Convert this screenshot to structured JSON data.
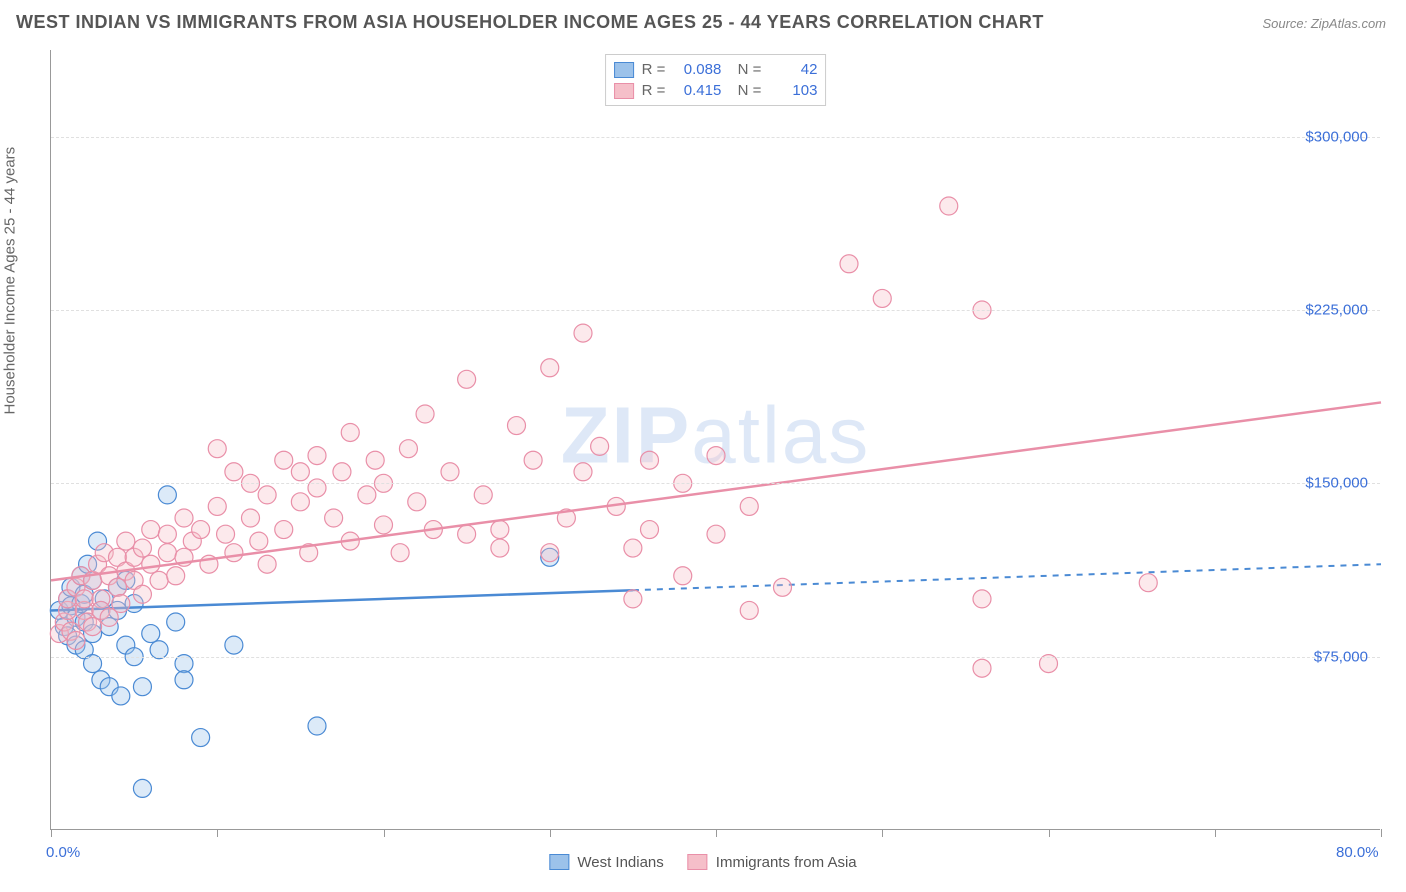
{
  "title": "WEST INDIAN VS IMMIGRANTS FROM ASIA HOUSEHOLDER INCOME AGES 25 - 44 YEARS CORRELATION CHART",
  "source": "Source: ZipAtlas.com",
  "y_axis_label": "Householder Income Ages 25 - 44 years",
  "watermark": "ZIPatlas",
  "chart": {
    "type": "scatter",
    "xlim": [
      0,
      80
    ],
    "ylim": [
      0,
      337500
    ],
    "x_tick_positions": [
      0,
      10,
      20,
      30,
      40,
      50,
      60,
      70,
      80
    ],
    "x_tick_labels": {
      "0": "0.0%",
      "80": "80.0%"
    },
    "y_ticks": [
      75000,
      150000,
      225000,
      300000
    ],
    "y_tick_labels": [
      "$75,000",
      "$150,000",
      "$225,000",
      "$300,000"
    ],
    "background_color": "#ffffff",
    "grid_color": "#e0e0e0",
    "marker_radius": 9,
    "marker_stroke_width": 1.2,
    "marker_fill_opacity": 0.35,
    "series": [
      {
        "name": "West Indians",
        "color_stroke": "#4a8ad4",
        "color_fill": "#9cc2ea",
        "R": "0.088",
        "N": "42",
        "regression": {
          "x1": 0,
          "y1": 95000,
          "x2": 80,
          "y2": 115000,
          "solid_until_x": 35
        },
        "points": [
          [
            0.5,
            95000
          ],
          [
            0.8,
            88000
          ],
          [
            1,
            100000
          ],
          [
            1,
            84000
          ],
          [
            1.2,
            97000
          ],
          [
            1.2,
            105000
          ],
          [
            1.5,
            92000
          ],
          [
            1.5,
            80000
          ],
          [
            1.8,
            110000
          ],
          [
            1.8,
            98000
          ],
          [
            2,
            102000
          ],
          [
            2,
            90000
          ],
          [
            2,
            78000
          ],
          [
            2.2,
            115000
          ],
          [
            2.5,
            108000
          ],
          [
            2.5,
            85000
          ],
          [
            2.5,
            72000
          ],
          [
            2.8,
            125000
          ],
          [
            3,
            95000
          ],
          [
            3,
            65000
          ],
          [
            3.2,
            100000
          ],
          [
            3.5,
            88000
          ],
          [
            3.5,
            62000
          ],
          [
            4,
            105000
          ],
          [
            4,
            95000
          ],
          [
            4.2,
            58000
          ],
          [
            4.5,
            108000
          ],
          [
            4.5,
            80000
          ],
          [
            5,
            98000
          ],
          [
            5,
            75000
          ],
          [
            5.5,
            62000
          ],
          [
            5.5,
            18000
          ],
          [
            6,
            85000
          ],
          [
            6.5,
            78000
          ],
          [
            7,
            145000
          ],
          [
            7.5,
            90000
          ],
          [
            8,
            72000
          ],
          [
            8,
            65000
          ],
          [
            9,
            40000
          ],
          [
            11,
            80000
          ],
          [
            16,
            45000
          ],
          [
            30,
            118000
          ]
        ]
      },
      {
        "name": "Immigrants from Asia",
        "color_stroke": "#e98fa8",
        "color_fill": "#f5bfc9",
        "R": "0.415",
        "N": "103",
        "regression": {
          "x1": 0,
          "y1": 108000,
          "x2": 80,
          "y2": 185000,
          "solid_until_x": 80
        },
        "points": [
          [
            0.5,
            85000
          ],
          [
            0.8,
            90000
          ],
          [
            1,
            95000
          ],
          [
            1,
            100000
          ],
          [
            1.2,
            86000
          ],
          [
            1.5,
            105000
          ],
          [
            1.5,
            82000
          ],
          [
            1.8,
            110000
          ],
          [
            2,
            95000
          ],
          [
            2,
            100000
          ],
          [
            2.2,
            90000
          ],
          [
            2.5,
            108000
          ],
          [
            2.5,
            88000
          ],
          [
            2.8,
            115000
          ],
          [
            3,
            100000
          ],
          [
            3,
            95000
          ],
          [
            3.2,
            120000
          ],
          [
            3.5,
            110000
          ],
          [
            3.5,
            92000
          ],
          [
            4,
            118000
          ],
          [
            4,
            105000
          ],
          [
            4.2,
            98000
          ],
          [
            4.5,
            125000
          ],
          [
            4.5,
            112000
          ],
          [
            5,
            108000
          ],
          [
            5,
            118000
          ],
          [
            5.5,
            122000
          ],
          [
            5.5,
            102000
          ],
          [
            6,
            130000
          ],
          [
            6,
            115000
          ],
          [
            6.5,
            108000
          ],
          [
            7,
            128000
          ],
          [
            7,
            120000
          ],
          [
            7.5,
            110000
          ],
          [
            8,
            135000
          ],
          [
            8,
            118000
          ],
          [
            8.5,
            125000
          ],
          [
            9,
            130000
          ],
          [
            9.5,
            115000
          ],
          [
            10,
            140000
          ],
          [
            10,
            165000
          ],
          [
            10.5,
            128000
          ],
          [
            11,
            155000
          ],
          [
            11,
            120000
          ],
          [
            12,
            135000
          ],
          [
            12,
            150000
          ],
          [
            12.5,
            125000
          ],
          [
            13,
            145000
          ],
          [
            13,
            115000
          ],
          [
            14,
            160000
          ],
          [
            14,
            130000
          ],
          [
            15,
            142000
          ],
          [
            15,
            155000
          ],
          [
            15.5,
            120000
          ],
          [
            16,
            148000
          ],
          [
            16,
            162000
          ],
          [
            17,
            135000
          ],
          [
            17.5,
            155000
          ],
          [
            18,
            125000
          ],
          [
            18,
            172000
          ],
          [
            19,
            145000
          ],
          [
            19.5,
            160000
          ],
          [
            20,
            132000
          ],
          [
            20,
            150000
          ],
          [
            21,
            120000
          ],
          [
            21.5,
            165000
          ],
          [
            22,
            142000
          ],
          [
            22.5,
            180000
          ],
          [
            23,
            130000
          ],
          [
            24,
            155000
          ],
          [
            25,
            195000
          ],
          [
            25,
            128000
          ],
          [
            26,
            145000
          ],
          [
            27,
            130000
          ],
          [
            27,
            122000
          ],
          [
            28,
            175000
          ],
          [
            29,
            160000
          ],
          [
            30,
            120000
          ],
          [
            30,
            200000
          ],
          [
            31,
            135000
          ],
          [
            32,
            155000
          ],
          [
            32,
            215000
          ],
          [
            33,
            166000
          ],
          [
            34,
            140000
          ],
          [
            35,
            122000
          ],
          [
            35,
            100000
          ],
          [
            36,
            160000
          ],
          [
            36,
            130000
          ],
          [
            38,
            110000
          ],
          [
            38,
            150000
          ],
          [
            40,
            128000
          ],
          [
            40,
            162000
          ],
          [
            42,
            95000
          ],
          [
            42,
            140000
          ],
          [
            44,
            105000
          ],
          [
            48,
            245000
          ],
          [
            50,
            230000
          ],
          [
            54,
            270000
          ],
          [
            56,
            70000
          ],
          [
            56,
            100000
          ],
          [
            56,
            225000
          ],
          [
            60,
            72000
          ],
          [
            66,
            107000
          ]
        ]
      }
    ]
  },
  "legend_bottom": [
    {
      "label": "West Indians",
      "swatch_fill": "#9cc2ea",
      "swatch_stroke": "#4a8ad4"
    },
    {
      "label": "Immigrants from Asia",
      "swatch_fill": "#f5bfc9",
      "swatch_stroke": "#e98fa8"
    }
  ]
}
